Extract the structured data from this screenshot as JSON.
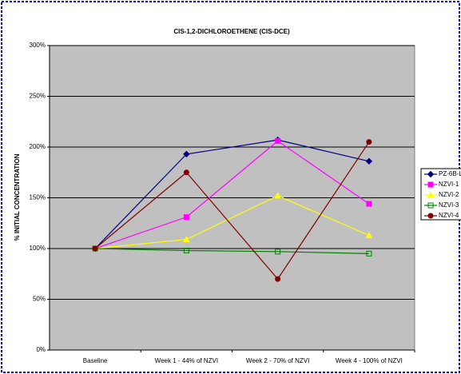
{
  "chart_data": {
    "type": "line",
    "title": "CIS-1,2-DICHLOROETHENE (CIS-DCE)",
    "y_label": "% INITIAL CONCENTRATION",
    "categories": [
      "Baseline",
      "Week 1 - 44% of NZVI",
      "Week 2 - 70% of NZVI",
      "Week 4 - 100% of NZVI"
    ],
    "series": [
      {
        "name": "PZ-6B-L",
        "color": "#000080",
        "marker": "diamond",
        "values": [
          100,
          193,
          207,
          186
        ]
      },
      {
        "name": "NZVI-1",
        "color": "#ff00ff",
        "marker": "square",
        "values": [
          100,
          131,
          206,
          144
        ]
      },
      {
        "name": "NZVI-2",
        "color": "#ffff00",
        "marker": "triangle",
        "values": [
          100,
          109,
          152,
          113
        ]
      },
      {
        "name": "NZVI-3",
        "color": "#008000",
        "marker": "open-square",
        "values": [
          100,
          98,
          97,
          95
        ]
      },
      {
        "name": "NZVI-4",
        "color": "#800000",
        "marker": "circle",
        "values": [
          100,
          175,
          70,
          205
        ]
      }
    ],
    "ylim": [
      0,
      300
    ],
    "yticks": [
      {
        "value": 0,
        "label": "0%"
      },
      {
        "value": 50,
        "label": "50%"
      },
      {
        "value": 100,
        "label": "100%"
      },
      {
        "value": 150,
        "label": "150%"
      },
      {
        "value": 200,
        "label": "200%"
      },
      {
        "value": 250,
        "label": "250%"
      },
      {
        "value": 300,
        "label": "300%"
      }
    ],
    "grid": true,
    "legend": "right"
  }
}
